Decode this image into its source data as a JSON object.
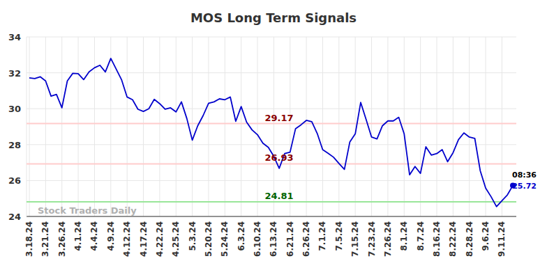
{
  "chart_data": {
    "type": "line",
    "title": "MOS Long Term Signals",
    "categories": [
      "3.18.24",
      null,
      null,
      "3.21.24",
      null,
      null,
      "3.26.24",
      null,
      null,
      "4.1.24",
      null,
      null,
      "4.4.24",
      null,
      null,
      "4.9.24",
      null,
      null,
      "4.12.24",
      null,
      null,
      "4.17.24",
      null,
      null,
      "4.22.24",
      null,
      null,
      "4.25.24",
      null,
      null,
      "5.3.24",
      null,
      null,
      "5.20.24",
      null,
      null,
      "5.24.24",
      null,
      null,
      "6.3.24",
      null,
      null,
      "6.10.24",
      null,
      null,
      "6.13.24",
      null,
      null,
      "6.21.24",
      null,
      null,
      "6.26.24",
      null,
      null,
      "7.1.24",
      null,
      null,
      "7.5.24",
      null,
      null,
      "7.15.24",
      null,
      null,
      "7.23.24",
      null,
      null,
      "7.26.24",
      null,
      null,
      "8.1.24",
      null,
      null,
      "8.7.24",
      null,
      null,
      "8.16.24",
      null,
      null,
      "8.22.24",
      null,
      null,
      "8.28.24",
      null,
      null,
      "9.6.24",
      null,
      null,
      "9.11.24",
      null,
      null
    ],
    "series": [
      {
        "name": "MOS",
        "color": "#0000cc",
        "values": [
          31.72,
          31.68,
          31.78,
          31.55,
          30.7,
          30.8,
          30.05,
          31.55,
          31.97,
          31.95,
          31.62,
          32.05,
          32.28,
          32.42,
          32.05,
          32.8,
          32.2,
          31.6,
          30.65,
          30.5,
          29.97,
          29.85,
          30.0,
          30.52,
          30.28,
          29.97,
          30.05,
          29.82,
          30.38,
          29.45,
          28.25,
          29.05,
          29.62,
          30.3,
          30.38,
          30.55,
          30.5,
          30.65,
          29.3,
          30.12,
          29.25,
          28.82,
          28.55,
          28.08,
          27.85,
          27.35,
          26.68,
          27.5,
          27.58,
          28.88,
          29.1,
          29.35,
          29.28,
          28.62,
          27.72,
          27.52,
          27.3,
          26.95,
          26.62,
          28.15,
          28.6,
          30.35,
          29.4,
          28.42,
          28.32,
          29.05,
          29.32,
          29.32,
          29.52,
          28.6,
          26.32,
          26.78,
          26.4,
          27.88,
          27.42,
          27.5,
          27.72,
          27.05,
          27.55,
          28.28,
          28.65,
          28.42,
          28.35,
          26.55,
          25.58,
          25.1,
          24.55,
          24.88,
          25.2,
          25.72
        ]
      }
    ],
    "ylim": [
      24,
      34
    ],
    "yticks": [
      24,
      26,
      28,
      30,
      32,
      34
    ],
    "grid": true,
    "reference_lines": [
      {
        "value": 29.17,
        "color": "#ffcccc",
        "label_color": "#8b0000"
      },
      {
        "value": 26.93,
        "color": "#ffcccc",
        "label_color": "#8b0000"
      },
      {
        "value": 24.81,
        "color": "#99e699",
        "label_color": "#006400"
      }
    ],
    "annotations": [
      {
        "text": "08:36",
        "index": 89,
        "color": "#000000"
      },
      {
        "text": "25.72",
        "index": 89,
        "color": "#0000cc"
      }
    ],
    "watermark": "Stock Traders Daily"
  }
}
